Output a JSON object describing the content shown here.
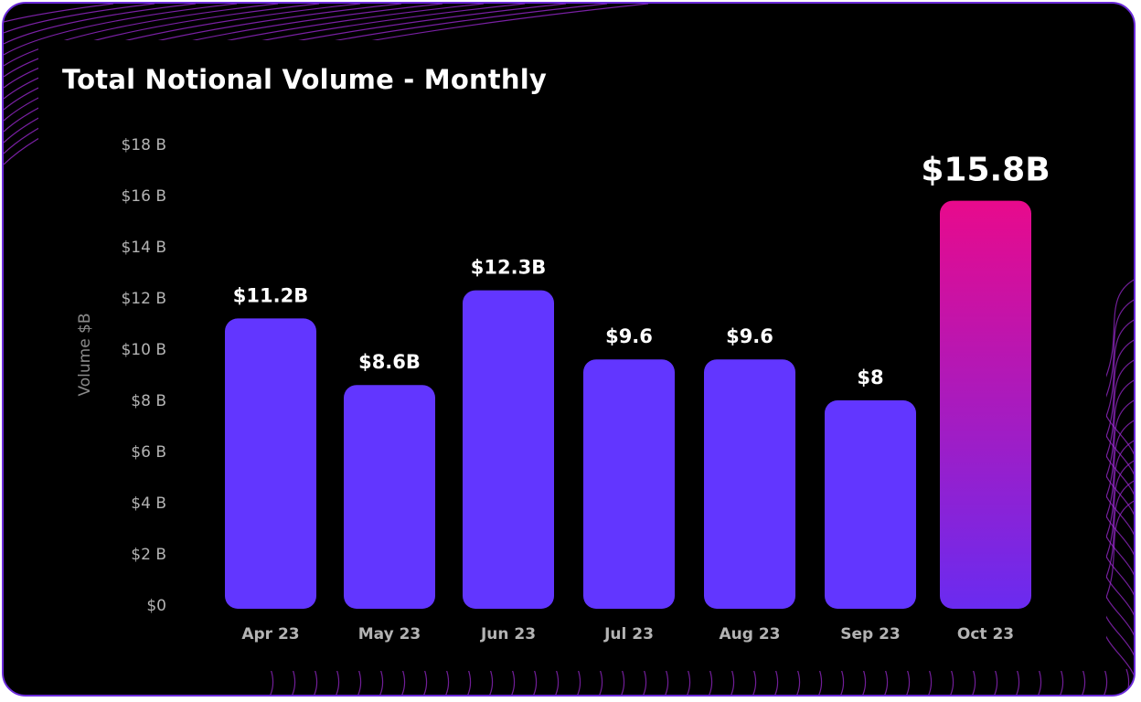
{
  "chart_data": {
    "type": "bar",
    "title": "Total Notional Volume - Monthly",
    "ylabel": "Volume $B",
    "xlabel": "",
    "ylim": [
      0,
      18
    ],
    "yticks": [
      {
        "value": 0,
        "label": "$0"
      },
      {
        "value": 2,
        "label": "$2 B"
      },
      {
        "value": 4,
        "label": "$4 B"
      },
      {
        "value": 6,
        "label": "$6 B"
      },
      {
        "value": 8,
        "label": "$8 B"
      },
      {
        "value": 10,
        "label": "$10 B"
      },
      {
        "value": 12,
        "label": "$12 B"
      },
      {
        "value": 14,
        "label": "$14 B"
      },
      {
        "value": 16,
        "label": "$16 B"
      },
      {
        "value": 18,
        "label": "$18 B"
      }
    ],
    "categories": [
      "Apr 23",
      "May 23",
      "Jun 23",
      "Jul 23",
      "Aug 23",
      "Sep 23",
      "Oct 23"
    ],
    "values": [
      11.2,
      8.6,
      12.3,
      9.6,
      9.6,
      8,
      15.8
    ],
    "data_labels": [
      "$11.2B",
      "$8.6B",
      "$12.3B",
      "$9.6",
      "$9.6",
      "$8",
      "$15.8B"
    ],
    "highlight_index": 6,
    "colors": {
      "bar": "#6236ff",
      "highlight_top": "#e80a8c",
      "highlight_bottom": "#6a2bf0",
      "axis_text": "#b3b3b3",
      "ylabel_text": "#8a8a8a",
      "label_text": "#ffffff",
      "frame": "#6b2bd9",
      "decor": "#a12bd9"
    }
  }
}
